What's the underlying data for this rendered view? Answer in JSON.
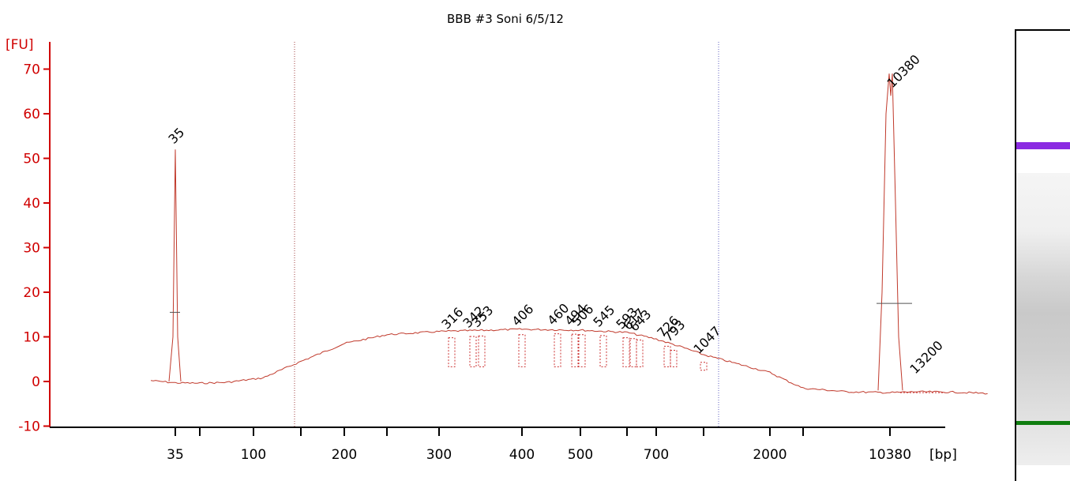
{
  "chart_data": {
    "type": "line",
    "title": "BBB #3 Soni 6/5/12",
    "ylabel": "[FU]",
    "xlabel": "[bp]",
    "ylim": [
      -10,
      75
    ],
    "yticks": [
      -10,
      0,
      10,
      20,
      30,
      40,
      50,
      60,
      70
    ],
    "xticks": [
      "35",
      "",
      "100",
      "",
      "200",
      "",
      "300",
      "400",
      "500",
      "",
      "700",
      "",
      "2000",
      "",
      "10380"
    ],
    "region_markers_bp": [
      150,
      1500
    ],
    "marker_peaks": [
      {
        "label": "35",
        "fu": 52,
        "color": "#1a8a1a"
      },
      {
        "label": "10380",
        "fu": 69,
        "color": "#9b30ff"
      }
    ],
    "sample_peaks": [
      {
        "label": "316",
        "fu": 10.5
      },
      {
        "label": "342",
        "fu": 10.8
      },
      {
        "label": "353",
        "fu": 10.9
      },
      {
        "label": "406",
        "fu": 11.2
      },
      {
        "label": "460",
        "fu": 11.4
      },
      {
        "label": "494",
        "fu": 11.3
      },
      {
        "label": "506",
        "fu": 11.2
      },
      {
        "label": "545",
        "fu": 11.0
      },
      {
        "label": "593",
        "fu": 10.5
      },
      {
        "label": "617",
        "fu": 10.3
      },
      {
        "label": "643",
        "fu": 10.0
      },
      {
        "label": "726",
        "fu": 8.6
      },
      {
        "label": "793",
        "fu": 7.7
      },
      {
        "label": "1047",
        "fu": 5.0
      },
      {
        "label": "13200",
        "fu": 0.5
      }
    ],
    "series": [
      {
        "color": "#c0392b",
        "points_ticks_fu": [
          [
            -1.0,
            0.2
          ],
          [
            0.0,
            -0.3
          ],
          [
            0.9,
            -0.4
          ],
          [
            1.5,
            -0.2
          ],
          [
            2.2,
            0.8
          ],
          [
            3.0,
            4.5
          ],
          [
            4.0,
            8.5
          ],
          [
            5.0,
            10.5
          ],
          [
            6.0,
            11.2
          ],
          [
            7.0,
            11.7
          ],
          [
            8.0,
            11.5
          ],
          [
            9.0,
            11.0
          ],
          [
            10.0,
            9.5
          ],
          [
            10.6,
            7.5
          ],
          [
            11.0,
            6.0
          ],
          [
            11.5,
            4.0
          ],
          [
            12.0,
            2.0
          ],
          [
            12.5,
            0.2
          ],
          [
            13.0,
            -1.5
          ],
          [
            13.5,
            -2.3
          ],
          [
            14.0,
            -2.5
          ],
          [
            14.6,
            -2.3
          ],
          [
            15.5,
            -2.4
          ],
          [
            16.3,
            -2.7
          ]
        ]
      }
    ]
  },
  "gel": {
    "marker_colors": {
      "upper": "#8b2be2",
      "lower": "#0f7d0f"
    }
  }
}
